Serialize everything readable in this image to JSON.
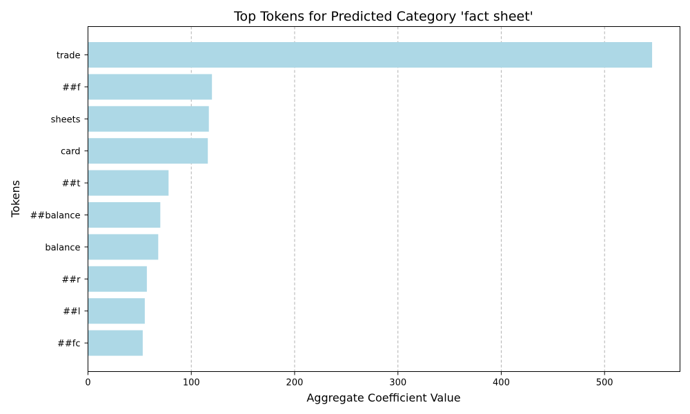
{
  "chart_data": {
    "type": "bar",
    "orientation": "horizontal",
    "title": "Top Tokens for Predicted Category 'fact sheet'",
    "xlabel": "Aggregate Coefficient Value",
    "ylabel": "Tokens",
    "categories": [
      "trade",
      "##f",
      "sheets",
      "card",
      "##t",
      "##balance",
      "balance",
      "##r",
      "##l",
      "##fc"
    ],
    "values": [
      546,
      120,
      117,
      116,
      78,
      70,
      68,
      57,
      55,
      53
    ],
    "xlim": [
      0,
      573
    ],
    "xticks": [
      0,
      100,
      200,
      300,
      400,
      500
    ],
    "grid": "x-axis dashed",
    "bar_color": "#add8e6"
  }
}
